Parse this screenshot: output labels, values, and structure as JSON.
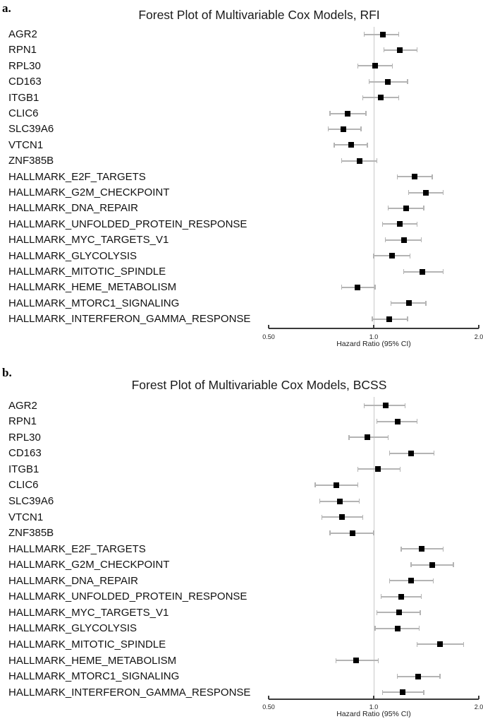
{
  "figure": {
    "background_color": "#ffffff",
    "colors": {
      "marker": "#000000",
      "ci_line": "#b4b4b4",
      "reference_line": "#c9c9c9",
      "axis_line": "#3a3a3a",
      "text": "#111111"
    }
  },
  "chart_data": [
    {
      "type": "scatter",
      "variant": "forest_plot",
      "panel_label": "a.",
      "title": "Forest Plot of Multivariable Cox Models, RFI",
      "xlabel": "Hazard Ratio (95% CI)",
      "x_scale": "log2",
      "xlim": [
        0.5,
        2.0
      ],
      "reference_line": 1.0,
      "grid": false,
      "x_ticks": [
        {
          "value": 0.5,
          "label": "0.50"
        },
        {
          "value": 1.0,
          "label": "1.0"
        },
        {
          "value": 2.0,
          "label": "2.0"
        }
      ],
      "rows": [
        {
          "label": "AGR2",
          "hr": 1.06,
          "ci_low": 0.94,
          "ci_high": 1.18
        },
        {
          "label": "RPN1",
          "hr": 1.19,
          "ci_low": 1.07,
          "ci_high": 1.33
        },
        {
          "label": "RPL30",
          "hr": 1.01,
          "ci_low": 0.9,
          "ci_high": 1.13
        },
        {
          "label": "CD163",
          "hr": 1.1,
          "ci_low": 0.97,
          "ci_high": 1.25
        },
        {
          "label": "ITGB1",
          "hr": 1.05,
          "ci_low": 0.93,
          "ci_high": 1.18
        },
        {
          "label": "CLIC6",
          "hr": 0.84,
          "ci_low": 0.75,
          "ci_high": 0.95
        },
        {
          "label": "SLC39A6",
          "hr": 0.82,
          "ci_low": 0.74,
          "ci_high": 0.92
        },
        {
          "label": "VTCN1",
          "hr": 0.86,
          "ci_low": 0.77,
          "ci_high": 0.96
        },
        {
          "label": "ZNF385B",
          "hr": 0.91,
          "ci_low": 0.81,
          "ci_high": 1.02
        },
        {
          "label": "HALLMARK_E2F_TARGETS",
          "hr": 1.31,
          "ci_low": 1.17,
          "ci_high": 1.47
        },
        {
          "label": "HALLMARK_G2M_CHECKPOINT",
          "hr": 1.41,
          "ci_low": 1.26,
          "ci_high": 1.58
        },
        {
          "label": "HALLMARK_DNA_REPAIR",
          "hr": 1.24,
          "ci_low": 1.1,
          "ci_high": 1.39
        },
        {
          "label": "HALLMARK_UNFOLDED_PROTEIN_RESPONSE",
          "hr": 1.19,
          "ci_low": 1.06,
          "ci_high": 1.33
        },
        {
          "label": "HALLMARK_MYC_TARGETS_V1",
          "hr": 1.22,
          "ci_low": 1.08,
          "ci_high": 1.37
        },
        {
          "label": "HALLMARK_GLYCOLYSIS",
          "hr": 1.13,
          "ci_low": 1.0,
          "ci_high": 1.27
        },
        {
          "label": "HALLMARK_MITOTIC_SPINDLE",
          "hr": 1.38,
          "ci_low": 1.22,
          "ci_high": 1.58
        },
        {
          "label": "HALLMARK_HEME_METABOLISM",
          "hr": 0.9,
          "ci_low": 0.81,
          "ci_high": 1.01
        },
        {
          "label": "HALLMARK_MTORC1_SIGNALING",
          "hr": 1.26,
          "ci_low": 1.12,
          "ci_high": 1.41
        },
        {
          "label": "HALLMARK_INTERFERON_GAMMA_RESPONSE",
          "hr": 1.11,
          "ci_low": 0.99,
          "ci_high": 1.25
        }
      ]
    },
    {
      "type": "scatter",
      "variant": "forest_plot",
      "panel_label": "b.",
      "title": "Forest Plot of Multivariable Cox Models, BCSS",
      "xlabel": "Hazard Ratio (95% CI)",
      "x_scale": "log2",
      "xlim": [
        0.5,
        2.0
      ],
      "reference_line": 1.0,
      "grid": false,
      "x_ticks": [
        {
          "value": 0.5,
          "label": "0.50"
        },
        {
          "value": 1.0,
          "label": "1.0"
        },
        {
          "value": 2.0,
          "label": "2.0"
        }
      ],
      "rows": [
        {
          "label": "AGR2",
          "hr": 1.08,
          "ci_low": 0.94,
          "ci_high": 1.23
        },
        {
          "label": "RPN1",
          "hr": 1.17,
          "ci_low": 1.02,
          "ci_high": 1.33
        },
        {
          "label": "RPL30",
          "hr": 0.96,
          "ci_low": 0.85,
          "ci_high": 1.1
        },
        {
          "label": "CD163",
          "hr": 1.28,
          "ci_low": 1.11,
          "ci_high": 1.49
        },
        {
          "label": "ITGB1",
          "hr": 1.03,
          "ci_low": 0.9,
          "ci_high": 1.19
        },
        {
          "label": "CLIC6",
          "hr": 0.78,
          "ci_low": 0.68,
          "ci_high": 0.9
        },
        {
          "label": "SLC39A6",
          "hr": 0.8,
          "ci_low": 0.7,
          "ci_high": 0.91
        },
        {
          "label": "VTCN1",
          "hr": 0.81,
          "ci_low": 0.71,
          "ci_high": 0.93
        },
        {
          "label": "ZNF385B",
          "hr": 0.87,
          "ci_low": 0.75,
          "ci_high": 1.0
        },
        {
          "label": "HALLMARK_E2F_TARGETS",
          "hr": 1.37,
          "ci_low": 1.2,
          "ci_high": 1.58
        },
        {
          "label": "HALLMARK_G2M_CHECKPOINT",
          "hr": 1.47,
          "ci_low": 1.28,
          "ci_high": 1.69
        },
        {
          "label": "HALLMARK_DNA_REPAIR",
          "hr": 1.28,
          "ci_low": 1.11,
          "ci_high": 1.48
        },
        {
          "label": "HALLMARK_UNFOLDED_PROTEIN_RESPONSE",
          "hr": 1.2,
          "ci_low": 1.05,
          "ci_high": 1.37
        },
        {
          "label": "HALLMARK_MYC_TARGETS_V1",
          "hr": 1.18,
          "ci_low": 1.02,
          "ci_high": 1.36
        },
        {
          "label": "HALLMARK_GLYCOLYSIS",
          "hr": 1.17,
          "ci_low": 1.01,
          "ci_high": 1.35
        },
        {
          "label": "HALLMARK_MITOTIC_SPINDLE",
          "hr": 1.55,
          "ci_low": 1.33,
          "ci_high": 1.81
        },
        {
          "label": "HALLMARK_HEME_METABOLISM",
          "hr": 0.89,
          "ci_low": 0.78,
          "ci_high": 1.03
        },
        {
          "label": "HALLMARK_MTORC1_SIGNALING",
          "hr": 1.34,
          "ci_low": 1.17,
          "ci_high": 1.55
        },
        {
          "label": "HALLMARK_INTERFERON_GAMMA_RESPONSE",
          "hr": 1.21,
          "ci_low": 1.06,
          "ci_high": 1.39
        }
      ]
    }
  ]
}
